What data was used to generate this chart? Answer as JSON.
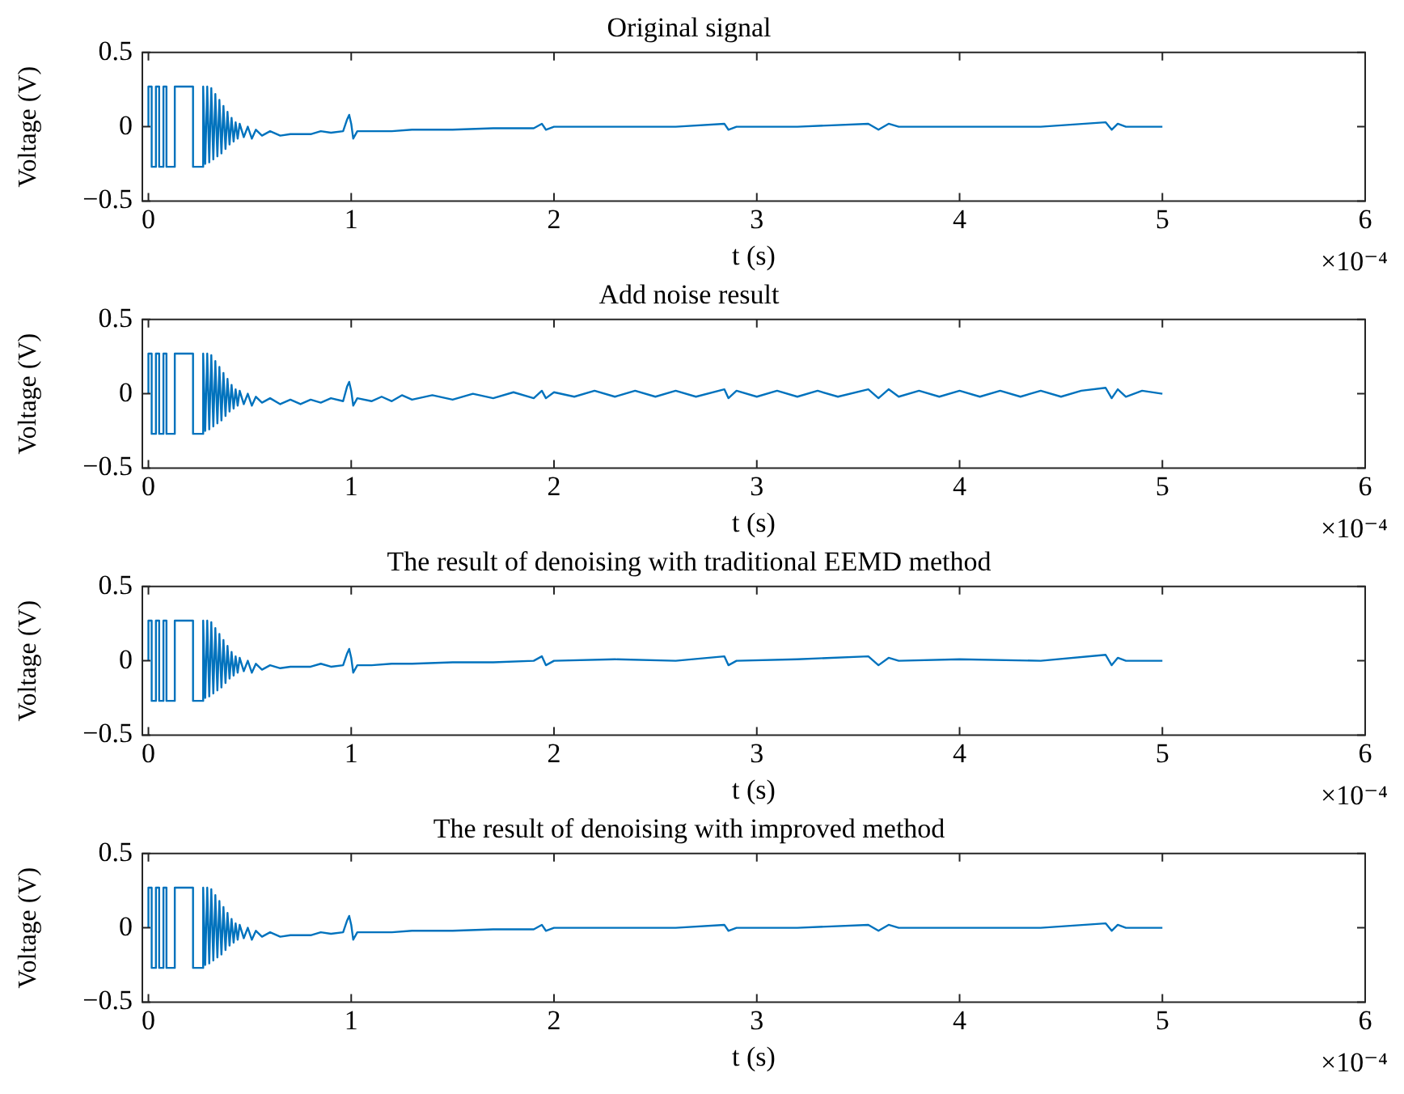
{
  "chart_data": [
    {
      "type": "line",
      "title": "Original signal",
      "xlabel": "t (s)",
      "ylabel": "Voltage (V)",
      "xlim": [
        -0.03,
        6
      ],
      "xticks": [
        0,
        1,
        2,
        3,
        4,
        5,
        6
      ],
      "ylim": [
        -0.5,
        0.5
      ],
      "yticks": [
        -0.5,
        0,
        0.5
      ],
      "annotations": [
        "×10⁻⁴"
      ],
      "series": [
        {
          "color": "#0072bd",
          "x": [
            0,
            0,
            0.016,
            0.016,
            0.037,
            0.037,
            0.053,
            0.053,
            0.074,
            0.074,
            0.089,
            0.089,
            0.13,
            0.13,
            0.22,
            0.22,
            0.27,
            0.27,
            0.28,
            0.29,
            0.3,
            0.31,
            0.32,
            0.33,
            0.34,
            0.35,
            0.36,
            0.37,
            0.38,
            0.39,
            0.4,
            0.41,
            0.42,
            0.43,
            0.44,
            0.45,
            0.47,
            0.49,
            0.51,
            0.53,
            0.56,
            0.6,
            0.65,
            0.7,
            0.8,
            0.85,
            0.9,
            0.96,
            0.98,
            0.99,
            1.0,
            1.01,
            1.03,
            1.1,
            1.2,
            1.3,
            1.5,
            1.7,
            1.9,
            1.94,
            1.96,
            2.0,
            2.3,
            2.6,
            2.84,
            2.86,
            2.9,
            3.2,
            3.55,
            3.6,
            3.65,
            3.7,
            4.0,
            4.4,
            4.72,
            4.75,
            4.78,
            4.82,
            5.0
          ],
          "values": [
            0,
            0.27,
            0.27,
            -0.27,
            -0.27,
            0.27,
            0.27,
            -0.27,
            -0.27,
            0.27,
            0.27,
            -0.27,
            -0.27,
            0.27,
            0.27,
            -0.27,
            -0.27,
            0.27,
            -0.25,
            0.27,
            -0.24,
            0.26,
            -0.22,
            0.22,
            -0.2,
            0.18,
            -0.18,
            0.14,
            -0.15,
            0.1,
            -0.12,
            0.06,
            -0.1,
            0.03,
            -0.08,
            0.02,
            -0.07,
            0,
            -0.08,
            -0.02,
            -0.06,
            -0.03,
            -0.06,
            -0.05,
            -0.05,
            -0.03,
            -0.04,
            -0.03,
            0.05,
            0.08,
            0.02,
            -0.08,
            -0.03,
            -0.03,
            -0.03,
            -0.02,
            -0.02,
            -0.01,
            -0.01,
            0.02,
            -0.02,
            0,
            0,
            0,
            0.02,
            -0.02,
            0,
            0,
            0.02,
            -0.02,
            0.02,
            0,
            0,
            0,
            0.03,
            -0.02,
            0.02,
            0,
            0
          ]
        }
      ]
    },
    {
      "type": "line",
      "title": "Add noise result",
      "xlabel": "t (s)",
      "ylabel": "Voltage (V)",
      "xlim": [
        -0.03,
        6
      ],
      "xticks": [
        0,
        1,
        2,
        3,
        4,
        5,
        6
      ],
      "ylim": [
        -0.5,
        0.5
      ],
      "yticks": [
        -0.5,
        0,
        0.5
      ],
      "annotations": [
        "×10⁻⁴"
      ],
      "series": [
        {
          "color": "#0072bd",
          "x": [
            0,
            0,
            0.016,
            0.016,
            0.037,
            0.037,
            0.053,
            0.053,
            0.074,
            0.074,
            0.089,
            0.089,
            0.13,
            0.13,
            0.22,
            0.22,
            0.27,
            0.27,
            0.28,
            0.29,
            0.3,
            0.31,
            0.32,
            0.33,
            0.34,
            0.35,
            0.36,
            0.37,
            0.38,
            0.39,
            0.4,
            0.41,
            0.42,
            0.43,
            0.44,
            0.45,
            0.47,
            0.49,
            0.51,
            0.53,
            0.56,
            0.6,
            0.65,
            0.7,
            0.75,
            0.8,
            0.85,
            0.9,
            0.96,
            0.98,
            0.99,
            1.0,
            1.01,
            1.03,
            1.1,
            1.15,
            1.2,
            1.25,
            1.3,
            1.4,
            1.5,
            1.6,
            1.7,
            1.8,
            1.9,
            1.94,
            1.96,
            2.0,
            2.1,
            2.2,
            2.3,
            2.4,
            2.5,
            2.6,
            2.7,
            2.84,
            2.86,
            2.9,
            3.0,
            3.1,
            3.2,
            3.3,
            3.4,
            3.55,
            3.6,
            3.65,
            3.7,
            3.8,
            3.9,
            4.0,
            4.1,
            4.2,
            4.3,
            4.4,
            4.5,
            4.6,
            4.72,
            4.75,
            4.78,
            4.82,
            4.9,
            5.0
          ],
          "values": [
            0,
            0.27,
            0.27,
            -0.27,
            -0.27,
            0.27,
            0.27,
            -0.27,
            -0.27,
            0.27,
            0.27,
            -0.27,
            -0.27,
            0.27,
            0.27,
            -0.27,
            -0.27,
            0.27,
            -0.25,
            0.27,
            -0.24,
            0.26,
            -0.22,
            0.22,
            -0.2,
            0.18,
            -0.18,
            0.14,
            -0.15,
            0.1,
            -0.12,
            0.06,
            -0.1,
            0.03,
            -0.08,
            0.02,
            -0.07,
            0,
            -0.08,
            -0.02,
            -0.06,
            -0.03,
            -0.07,
            -0.04,
            -0.07,
            -0.04,
            -0.06,
            -0.03,
            -0.05,
            0.05,
            0.08,
            0.02,
            -0.08,
            -0.03,
            -0.05,
            -0.02,
            -0.05,
            -0.01,
            -0.04,
            -0.01,
            -0.04,
            0,
            -0.03,
            0.01,
            -0.03,
            0.02,
            -0.03,
            0.01,
            -0.02,
            0.02,
            -0.02,
            0.02,
            -0.02,
            0.02,
            -0.02,
            0.03,
            -0.03,
            0.02,
            -0.02,
            0.02,
            -0.02,
            0.02,
            -0.02,
            0.03,
            -0.03,
            0.03,
            -0.02,
            0.02,
            -0.02,
            0.02,
            -0.02,
            0.02,
            -0.02,
            0.02,
            -0.02,
            0.02,
            0.04,
            -0.03,
            0.03,
            -0.02,
            0.02,
            0
          ]
        }
      ]
    },
    {
      "type": "line",
      "title": "The result of denoising with traditional EEMD method",
      "xlabel": "t (s)",
      "ylabel": "Voltage (V)",
      "xlim": [
        -0.03,
        6
      ],
      "xticks": [
        0,
        1,
        2,
        3,
        4,
        5,
        6
      ],
      "ylim": [
        -0.5,
        0.5
      ],
      "yticks": [
        -0.5,
        0,
        0.5
      ],
      "annotations": [
        "×10⁻⁴"
      ],
      "series": [
        {
          "color": "#0072bd",
          "x": [
            0,
            0,
            0.016,
            0.016,
            0.037,
            0.037,
            0.053,
            0.053,
            0.074,
            0.074,
            0.089,
            0.089,
            0.13,
            0.13,
            0.22,
            0.22,
            0.27,
            0.27,
            0.28,
            0.29,
            0.3,
            0.31,
            0.32,
            0.33,
            0.34,
            0.35,
            0.36,
            0.37,
            0.38,
            0.39,
            0.4,
            0.41,
            0.42,
            0.43,
            0.44,
            0.45,
            0.47,
            0.49,
            0.51,
            0.53,
            0.56,
            0.6,
            0.65,
            0.7,
            0.8,
            0.85,
            0.9,
            0.96,
            0.98,
            0.99,
            1.0,
            1.01,
            1.03,
            1.1,
            1.2,
            1.3,
            1.5,
            1.7,
            1.9,
            1.94,
            1.96,
            2.0,
            2.3,
            2.6,
            2.84,
            2.86,
            2.9,
            3.2,
            3.55,
            3.6,
            3.65,
            3.7,
            4.0,
            4.4,
            4.72,
            4.75,
            4.78,
            4.82,
            5.0
          ],
          "values": [
            0,
            0.27,
            0.27,
            -0.27,
            -0.27,
            0.27,
            0.27,
            -0.27,
            -0.27,
            0.27,
            0.27,
            -0.27,
            -0.27,
            0.27,
            0.27,
            -0.27,
            -0.27,
            0.27,
            -0.25,
            0.27,
            -0.24,
            0.26,
            -0.22,
            0.22,
            -0.2,
            0.18,
            -0.18,
            0.14,
            -0.15,
            0.1,
            -0.12,
            0.06,
            -0.1,
            0.03,
            -0.08,
            0.02,
            -0.07,
            0,
            -0.08,
            -0.02,
            -0.06,
            -0.03,
            -0.05,
            -0.04,
            -0.04,
            -0.02,
            -0.04,
            -0.03,
            0.05,
            0.08,
            0.02,
            -0.08,
            -0.03,
            -0.03,
            -0.02,
            -0.02,
            -0.01,
            -0.01,
            0,
            0.03,
            -0.03,
            0,
            0.01,
            0,
            0.03,
            -0.03,
            0,
            0.01,
            0.03,
            -0.03,
            0.02,
            0,
            0.01,
            0,
            0.04,
            -0.03,
            0.02,
            0,
            0
          ]
        }
      ]
    },
    {
      "type": "line",
      "title": "The result of denoising with improved method",
      "xlabel": "t (s)",
      "ylabel": "Voltage (V)",
      "xlim": [
        -0.03,
        6
      ],
      "xticks": [
        0,
        1,
        2,
        3,
        4,
        5,
        6
      ],
      "ylim": [
        -0.5,
        0.5
      ],
      "yticks": [
        -0.5,
        0,
        0.5
      ],
      "annotations": [
        "×10⁻⁴"
      ],
      "series": [
        {
          "color": "#0072bd",
          "x": [
            0,
            0,
            0.016,
            0.016,
            0.037,
            0.037,
            0.053,
            0.053,
            0.074,
            0.074,
            0.089,
            0.089,
            0.13,
            0.13,
            0.22,
            0.22,
            0.27,
            0.27,
            0.28,
            0.29,
            0.3,
            0.31,
            0.32,
            0.33,
            0.34,
            0.35,
            0.36,
            0.37,
            0.38,
            0.39,
            0.4,
            0.41,
            0.42,
            0.43,
            0.44,
            0.45,
            0.47,
            0.49,
            0.51,
            0.53,
            0.56,
            0.6,
            0.65,
            0.7,
            0.8,
            0.85,
            0.9,
            0.96,
            0.98,
            0.99,
            1.0,
            1.01,
            1.03,
            1.1,
            1.2,
            1.3,
            1.5,
            1.7,
            1.9,
            1.94,
            1.96,
            2.0,
            2.3,
            2.6,
            2.84,
            2.86,
            2.9,
            3.2,
            3.55,
            3.6,
            3.65,
            3.7,
            4.0,
            4.4,
            4.72,
            4.75,
            4.78,
            4.82,
            5.0
          ],
          "values": [
            0,
            0.27,
            0.27,
            -0.27,
            -0.27,
            0.27,
            0.27,
            -0.27,
            -0.27,
            0.27,
            0.27,
            -0.27,
            -0.27,
            0.27,
            0.27,
            -0.27,
            -0.27,
            0.27,
            -0.25,
            0.27,
            -0.24,
            0.26,
            -0.22,
            0.22,
            -0.2,
            0.18,
            -0.18,
            0.14,
            -0.15,
            0.1,
            -0.12,
            0.06,
            -0.1,
            0.03,
            -0.08,
            0.02,
            -0.07,
            0,
            -0.08,
            -0.02,
            -0.06,
            -0.03,
            -0.06,
            -0.05,
            -0.05,
            -0.03,
            -0.04,
            -0.03,
            0.05,
            0.08,
            0.02,
            -0.08,
            -0.03,
            -0.03,
            -0.03,
            -0.02,
            -0.02,
            -0.01,
            -0.01,
            0.02,
            -0.02,
            0,
            0,
            0,
            0.02,
            -0.02,
            0,
            0,
            0.02,
            -0.02,
            0.02,
            0,
            0,
            0,
            0.03,
            -0.02,
            0.02,
            0,
            0
          ]
        }
      ]
    }
  ]
}
